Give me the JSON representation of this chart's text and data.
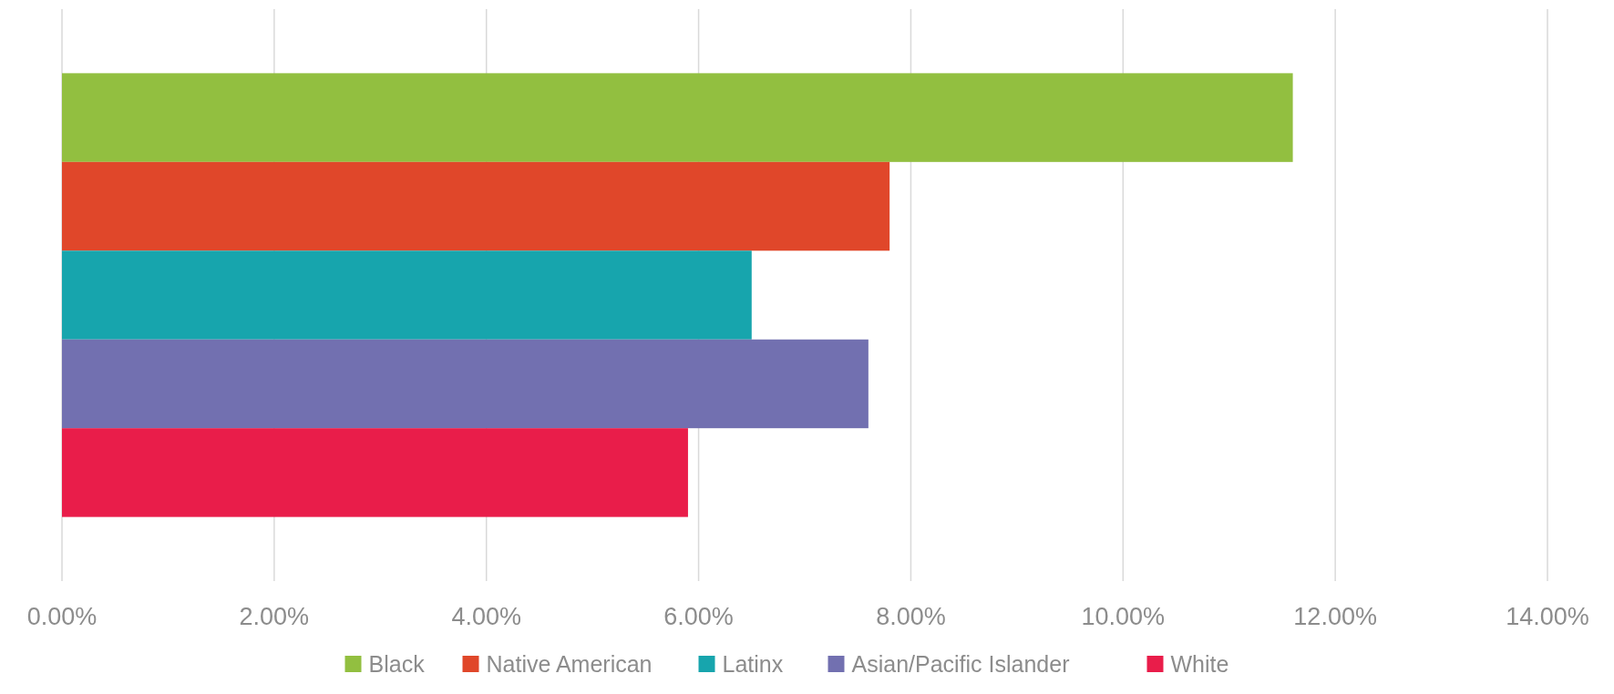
{
  "chart_data": {
    "type": "bar",
    "orientation": "horizontal",
    "categories": [
      null
    ],
    "series": [
      {
        "name": "Black",
        "color": "#92bf40",
        "values": [
          11.6
        ]
      },
      {
        "name": "Native American",
        "color": "#e0472a",
        "values": [
          7.8
        ]
      },
      {
        "name": "Latinx",
        "color": "#17a5ad",
        "values": [
          6.5
        ]
      },
      {
        "name": "Asian/Pacific Islander",
        "color": "#7270b0",
        "values": [
          7.6
        ]
      },
      {
        "name": "White",
        "color": "#e91d4a",
        "values": [
          5.9
        ]
      }
    ],
    "xlim": [
      0,
      14
    ],
    "xticks": [
      {
        "value": 0,
        "label": "0.00%"
      },
      {
        "value": 2,
        "label": "2.00%"
      },
      {
        "value": 4,
        "label": "4.00%"
      },
      {
        "value": 6,
        "label": "6.00%"
      },
      {
        "value": 8,
        "label": "8.00%"
      },
      {
        "value": 10,
        "label": "10.00%"
      },
      {
        "value": 12,
        "label": "12.00%"
      },
      {
        "value": 14,
        "label": "14.00%"
      }
    ],
    "grid": "x",
    "legend": "bottom"
  }
}
